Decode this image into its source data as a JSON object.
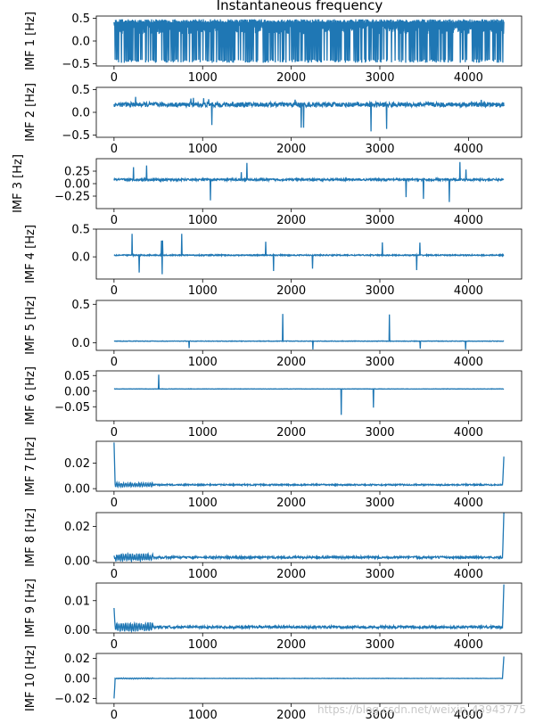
{
  "figure": {
    "title": "Instantaneous frequency",
    "watermark": "https://blog.csdn.net/weixin_43943775",
    "line_color": "#1f77b4"
  },
  "chart_data": [
    {
      "type": "line",
      "name": "imf1",
      "ylabel": "IMF 1 [Hz]",
      "xlim": [
        -200,
        4600
      ],
      "ylim": [
        -0.55,
        0.55
      ],
      "x_ticks": [
        "0",
        "1000",
        "2000",
        "3000",
        "4000"
      ],
      "x_tick_values": [
        0,
        1000,
        2000,
        3000,
        4000
      ],
      "y_ticks": [
        "−0.5",
        "0.0",
        "0.5"
      ],
      "y_tick_values": [
        -0.5,
        0.0,
        0.5
      ],
      "n": 4400,
      "trace": {
        "kind": "dense",
        "lo": -0.48,
        "hi": 0.48,
        "center": 0.25,
        "spread": 0.2,
        "spikes": 0
      }
    },
    {
      "type": "line",
      "name": "imf2",
      "ylabel": "IMF 2 [Hz]",
      "xlim": [
        -200,
        4600
      ],
      "ylim": [
        -0.55,
        0.55
      ],
      "x_ticks": [
        "0",
        "1000",
        "2000",
        "3000",
        "4000"
      ],
      "x_tick_values": [
        0,
        1000,
        2000,
        3000,
        4000
      ],
      "y_ticks": [
        "−0.5",
        "0.0",
        "0.5"
      ],
      "y_tick_values": [
        -0.5,
        0.0,
        0.5
      ],
      "n": 4400,
      "trace": {
        "kind": "noisy",
        "center": 0.17,
        "spread": 0.1,
        "spikes": 12,
        "spike_lo": -0.45,
        "spike_hi": 0.4
      }
    },
    {
      "type": "line",
      "name": "imf3",
      "ylabel": "IMF 3 [Hz]",
      "xlim": [
        -200,
        4600
      ],
      "ylim": [
        -0.5,
        0.5
      ],
      "x_ticks": [
        "0",
        "1000",
        "2000",
        "3000",
        "4000"
      ],
      "x_tick_values": [
        0,
        1000,
        2000,
        3000,
        4000
      ],
      "y_ticks": [
        "−0.25",
        "0.00",
        "0.25"
      ],
      "y_tick_values": [
        -0.25,
        0.0,
        0.25
      ],
      "n": 4400,
      "trace": {
        "kind": "noisy",
        "center": 0.08,
        "spread": 0.04,
        "spikes": 10,
        "spike_lo": -0.4,
        "spike_hi": 0.45
      }
    },
    {
      "type": "line",
      "name": "imf4",
      "ylabel": "IMF 4 [Hz]",
      "xlim": [
        -200,
        4600
      ],
      "ylim": [
        -0.4,
        0.5
      ],
      "x_ticks": [
        "0",
        "1000",
        "2000",
        "3000",
        "4000"
      ],
      "x_tick_values": [
        0,
        1000,
        2000,
        3000,
        4000
      ],
      "y_ticks": [
        "0.0",
        "0.5"
      ],
      "y_tick_values": [
        0.0,
        0.5
      ],
      "n": 4400,
      "trace": {
        "kind": "noisy",
        "center": 0.03,
        "spread": 0.02,
        "spikes": 12,
        "spike_lo": -0.33,
        "spike_hi": 0.47
      }
    },
    {
      "type": "line",
      "name": "imf5",
      "ylabel": "IMF 5 [Hz]",
      "xlim": [
        -200,
        4600
      ],
      "ylim": [
        -0.1,
        0.55
      ],
      "x_ticks": [
        "0",
        "1000",
        "2000",
        "3000",
        "4000"
      ],
      "x_tick_values": [
        0,
        1000,
        2000,
        3000,
        4000
      ],
      "y_ticks": [
        "0.0",
        "0.5"
      ],
      "y_tick_values": [
        0.0,
        0.5
      ],
      "n": 4400,
      "trace": {
        "kind": "noisy",
        "center": 0.02,
        "spread": 0.006,
        "spikes": 6,
        "spike_lo": -0.09,
        "spike_hi": 0.5
      }
    },
    {
      "type": "line",
      "name": "imf6",
      "ylabel": "IMF 6 [Hz]",
      "xlim": [
        -200,
        4600
      ],
      "ylim": [
        -0.095,
        0.065
      ],
      "x_ticks": [
        "0",
        "1000",
        "2000",
        "3000",
        "4000"
      ],
      "x_tick_values": [
        0,
        1000,
        2000,
        3000,
        4000
      ],
      "y_ticks": [
        "−0.05",
        "0.00",
        "0.05"
      ],
      "y_tick_values": [
        -0.05,
        0.0,
        0.05
      ],
      "n": 4400,
      "trace": {
        "kind": "smooth",
        "center": 0.007,
        "spread": 0.002,
        "spikes": 3,
        "spike_lo": -0.08,
        "spike_hi": 0.055
      }
    },
    {
      "type": "line",
      "name": "imf7",
      "ylabel": "IMF 7 [Hz]",
      "xlim": [
        -200,
        4600
      ],
      "ylim": [
        -0.002,
        0.037
      ],
      "x_ticks": [
        "0",
        "1000",
        "2000",
        "3000",
        "4000"
      ],
      "x_tick_values": [
        0,
        1000,
        2000,
        3000,
        4000
      ],
      "y_ticks": [
        "0.00",
        "0.02"
      ],
      "y_tick_values": [
        0.0,
        0.02
      ],
      "n": 4400,
      "trace": {
        "kind": "edge",
        "center": 0.003,
        "spread": 0.001,
        "left": 0.036,
        "right": 0.025
      }
    },
    {
      "type": "line",
      "name": "imf8",
      "ylabel": "IMF 8 [Hz]",
      "xlim": [
        -200,
        4600
      ],
      "ylim": [
        -0.001,
        0.028
      ],
      "x_ticks": [
        "0",
        "1000",
        "2000",
        "3000",
        "4000"
      ],
      "x_tick_values": [
        0,
        1000,
        2000,
        3000,
        4000
      ],
      "y_ticks": [
        "0.00",
        "0.02"
      ],
      "y_tick_values": [
        0.0,
        0.02
      ],
      "n": 4400,
      "trace": {
        "kind": "edge",
        "center": 0.002,
        "spread": 0.0012,
        "left": 0.003,
        "right": 0.028
      }
    },
    {
      "type": "line",
      "name": "imf9",
      "ylabel": "IMF 9 [Hz]",
      "xlim": [
        -200,
        4600
      ],
      "ylim": [
        -0.001,
        0.016
      ],
      "x_ticks": [
        "0",
        "1000",
        "2000",
        "3000",
        "4000"
      ],
      "x_tick_values": [
        0,
        1000,
        2000,
        3000,
        4000
      ],
      "y_ticks": [
        "0.00",
        "0.01"
      ],
      "y_tick_values": [
        0.0,
        0.01
      ],
      "n": 4400,
      "trace": {
        "kind": "edge",
        "center": 0.001,
        "spread": 0.0008,
        "left": 0.0075,
        "right": 0.0155
      }
    },
    {
      "type": "line",
      "name": "imf10",
      "ylabel": "IMF 10 [Hz]",
      "xlim": [
        -200,
        4600
      ],
      "ylim": [
        -0.025,
        0.025
      ],
      "x_ticks": [
        "0",
        "1000",
        "2000",
        "3000",
        "4000"
      ],
      "x_tick_values": [
        0,
        1000,
        2000,
        3000,
        4000
      ],
      "y_ticks": [
        "−0.02",
        "0.00",
        "0.02"
      ],
      "y_tick_values": [
        -0.02,
        0.0,
        0.02
      ],
      "n": 4400,
      "trace": {
        "kind": "edge",
        "center": 0.0,
        "spread": 0.0003,
        "left": -0.02,
        "right": 0.022
      }
    }
  ]
}
